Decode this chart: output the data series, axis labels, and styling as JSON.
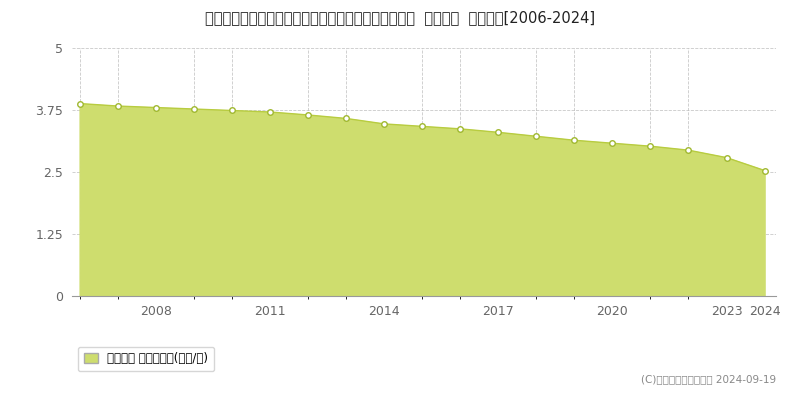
{
  "title": "岩手県九戸郡洋野町大野第６２地割字坂の上６０番４  基準地価  地価推移[2006-2024]",
  "years": [
    2006,
    2007,
    2008,
    2009,
    2010,
    2011,
    2012,
    2013,
    2014,
    2015,
    2016,
    2017,
    2018,
    2019,
    2020,
    2021,
    2022,
    2023,
    2024
  ],
  "values": [
    3.88,
    3.83,
    3.8,
    3.77,
    3.74,
    3.71,
    3.65,
    3.58,
    3.47,
    3.42,
    3.37,
    3.3,
    3.22,
    3.14,
    3.08,
    3.02,
    2.94,
    2.79,
    2.53
  ],
  "ylim": [
    0,
    5
  ],
  "yticks": [
    0,
    1.25,
    2.5,
    3.75,
    5
  ],
  "ytick_labels": [
    "0",
    "1.25",
    "2.5",
    "3.75",
    "5"
  ],
  "fill_color": "#cedd6e",
  "line_color": "#b8cc40",
  "marker_facecolor": "#ffffff",
  "marker_edgecolor": "#a0b830",
  "grid_color": "#bbbbbb",
  "background_color": "#ffffff",
  "legend_label": "基準地価 平均坪単価(万円/坪)",
  "legend_color": "#cedd6e",
  "copyright_text": "(C)土地価格ドットコム 2024-09-19",
  "major_xticks": [
    2008,
    2011,
    2014,
    2017,
    2020,
    2023,
    2024
  ],
  "minor_xticks": [
    2006,
    2007,
    2008,
    2009,
    2010,
    2011,
    2012,
    2013,
    2014,
    2015,
    2016,
    2017,
    2018,
    2019,
    2020,
    2021,
    2022,
    2023,
    2024
  ],
  "title_fontsize": 10.5,
  "tick_fontsize": 9,
  "legend_fontsize": 8.5,
  "copyright_fontsize": 7.5
}
